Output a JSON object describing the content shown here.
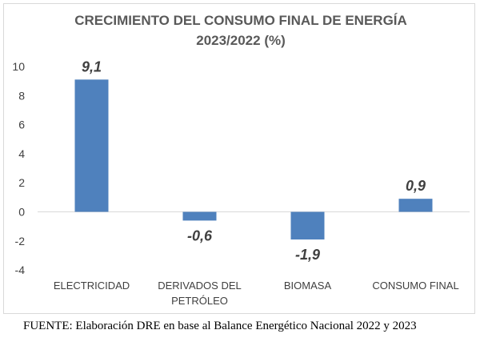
{
  "chart_data": {
    "type": "bar",
    "title": [
      "CRECIMIENTO DEL CONSUMO FINAL DE ENERGÍA",
      "2023/2022 (%)"
    ],
    "categories": [
      [
        "ELECTRICIDAD"
      ],
      [
        "DERIVADOS DEL",
        "PETRÓLEO"
      ],
      [
        "BIOMASA"
      ],
      [
        "CONSUMO FINAL"
      ]
    ],
    "values": [
      9.1,
      -0.6,
      -1.9,
      0.9
    ],
    "data_labels": [
      "9,1",
      "-0,6",
      "-1,9",
      "0,9"
    ],
    "ylim": [
      -4,
      10
    ],
    "yticks": [
      -4,
      -2,
      0,
      2,
      4,
      6,
      8,
      10
    ],
    "ytick_labels": [
      "-4",
      "-2",
      "0",
      "2",
      "4",
      "6",
      "8",
      "10"
    ],
    "grid": false,
    "colors": {
      "bar": "#4f81bd",
      "axis": "#d9d9d9"
    }
  },
  "source_note": "FUENTE: Elaboración DRE en base al Balance Energético Nacional 2022 y 2023"
}
